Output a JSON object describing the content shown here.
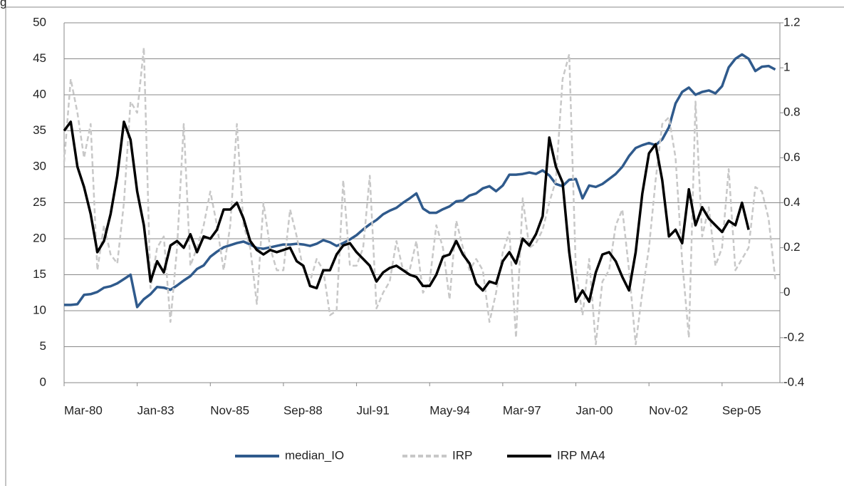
{
  "caption_fragment": "g",
  "chart_data": {
    "type": "line",
    "categories": [
      "Mar-80",
      null,
      null,
      null,
      null,
      null,
      null,
      null,
      null,
      null,
      null,
      "Jan-83",
      null,
      null,
      null,
      null,
      null,
      null,
      null,
      null,
      null,
      null,
      "Nov-85",
      null,
      null,
      null,
      null,
      null,
      null,
      null,
      null,
      null,
      null,
      "Sep-88",
      null,
      null,
      null,
      null,
      null,
      null,
      null,
      null,
      null,
      null,
      "Jul-91",
      null,
      null,
      null,
      null,
      null,
      null,
      null,
      null,
      null,
      null,
      "May-94",
      null,
      null,
      null,
      null,
      null,
      null,
      null,
      null,
      null,
      null,
      "Mar-97",
      null,
      null,
      null,
      null,
      null,
      null,
      null,
      null,
      null,
      null,
      "Jan-00",
      null,
      null,
      null,
      null,
      null,
      null,
      null,
      null,
      null,
      null,
      "Nov-02",
      null,
      null,
      null,
      null,
      null,
      null,
      null,
      null,
      null,
      null,
      "Sep-05",
      null,
      null,
      null,
      null,
      null,
      null,
      null,
      null
    ],
    "series": [
      {
        "name": "median_IO",
        "color": "#2f5a8c",
        "dash": false,
        "axis": "y",
        "values": [
          10.8,
          10.8,
          10.9,
          12.2,
          12.3,
          12.6,
          13.2,
          13.4,
          13.8,
          14.4,
          15.0,
          10.5,
          11.6,
          12.3,
          13.3,
          13.2,
          12.9,
          13.5,
          14.2,
          14.8,
          15.8,
          16.3,
          17.5,
          18.2,
          18.8,
          19.1,
          19.4,
          19.6,
          19.2,
          18.7,
          18.6,
          18.8,
          19.0,
          19.2,
          19.2,
          19.3,
          19.2,
          19.0,
          19.3,
          19.8,
          19.5,
          19.0,
          19.4,
          19.9,
          20.5,
          21.3,
          22.0,
          22.6,
          23.4,
          23.9,
          24.3,
          25.0,
          25.6,
          26.3,
          24.2,
          23.6,
          23.6,
          24.1,
          24.5,
          25.2,
          25.3,
          26.0,
          26.3,
          27.0,
          27.3,
          26.6,
          27.4,
          28.9,
          28.9,
          29.0,
          29.2,
          29.0,
          29.5,
          28.8,
          27.6,
          27.3,
          28.2,
          28.3,
          25.6,
          27.4,
          27.2,
          27.6,
          28.3,
          29.0,
          30.0,
          31.5,
          32.6,
          33.0,
          33.3,
          33.0,
          33.8,
          35.5,
          38.8,
          40.4,
          41.0,
          40.0,
          40.4,
          40.6,
          40.2,
          41.2,
          43.8,
          45.0,
          45.6,
          45.0,
          43.3,
          43.9,
          44.0,
          43.5
        ]
      },
      {
        "name": "IRP",
        "color": "#c8c8c8",
        "dash": true,
        "axis": "y2",
        "values": [
          0.58,
          0.95,
          0.8,
          0.6,
          0.75,
          0.1,
          0.3,
          0.17,
          0.13,
          0.4,
          0.85,
          0.8,
          1.09,
          0.02,
          0.2,
          0.25,
          -0.13,
          0.2,
          0.75,
          0.12,
          0.2,
          0.3,
          0.45,
          0.3,
          0.1,
          0.3,
          0.75,
          0.3,
          0.2,
          -0.05,
          0.4,
          0.2,
          0.1,
          0.1,
          0.37,
          0.25,
          0.1,
          0.05,
          0.15,
          0.1,
          -0.1,
          -0.08,
          0.5,
          0.12,
          0.12,
          0.2,
          0.52,
          -0.07,
          0.0,
          0.05,
          0.23,
          0.1,
          0.1,
          0.23,
          0.0,
          0.05,
          0.3,
          0.2,
          -0.03,
          0.32,
          0.2,
          0.1,
          0.15,
          0.1,
          -0.13,
          0.0,
          0.18,
          0.27,
          -0.2,
          0.42,
          0.2,
          0.22,
          0.28,
          0.4,
          0.5,
          0.95,
          1.06,
          0.1,
          -0.1,
          0.15,
          -0.23,
          0.05,
          0.1,
          0.3,
          0.37,
          0.1,
          -0.23,
          0.0,
          0.2,
          0.5,
          0.75,
          0.78,
          0.6,
          0.14,
          -0.2,
          0.85,
          0.25,
          0.38,
          0.12,
          0.2,
          0.55,
          0.1,
          0.15,
          0.2,
          0.47,
          0.45,
          0.33,
          0.06
        ]
      },
      {
        "name": "IRP MA4",
        "color": "#000000",
        "dash": false,
        "axis": "y2",
        "values": [
          0.72,
          0.76,
          0.56,
          0.47,
          0.35,
          0.18,
          0.23,
          0.35,
          0.52,
          0.76,
          0.68,
          0.45,
          0.3,
          0.05,
          0.14,
          0.09,
          0.21,
          0.23,
          0.2,
          0.26,
          0.18,
          0.25,
          0.24,
          0.28,
          0.37,
          0.37,
          0.4,
          0.33,
          0.23,
          0.19,
          0.17,
          0.19,
          0.18,
          0.19,
          0.2,
          0.14,
          0.12,
          0.03,
          0.02,
          0.1,
          0.1,
          0.17,
          0.21,
          0.22,
          0.18,
          0.15,
          0.12,
          0.05,
          0.09,
          0.11,
          0.12,
          0.1,
          0.08,
          0.07,
          0.03,
          0.03,
          0.08,
          0.16,
          0.17,
          0.23,
          0.17,
          0.13,
          0.04,
          0.01,
          0.05,
          0.04,
          0.14,
          0.18,
          0.13,
          0.24,
          0.21,
          0.26,
          0.34,
          0.69,
          0.56,
          0.49,
          0.18,
          -0.04,
          0.01,
          -0.04,
          0.09,
          0.17,
          0.18,
          0.14,
          0.07,
          0.01,
          0.18,
          0.44,
          0.62,
          0.66,
          0.5,
          0.25,
          0.28,
          0.22,
          0.46,
          0.3,
          0.38,
          0.33,
          0.3,
          0.27,
          0.32,
          0.3,
          0.4,
          0.28,
          null,
          null,
          null,
          null
        ]
      }
    ],
    "ylim": [
      0,
      50
    ],
    "yticks": [
      0,
      5,
      10,
      15,
      20,
      25,
      30,
      35,
      40,
      45,
      50
    ],
    "y2lim": [
      -0.4,
      1.2
    ],
    "y2ticks": [
      -0.4,
      -0.2,
      0,
      0.2,
      0.4,
      0.6,
      0.8,
      1,
      1.2
    ],
    "grid": true,
    "legend": "bottom"
  }
}
